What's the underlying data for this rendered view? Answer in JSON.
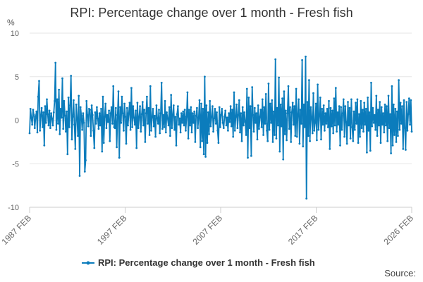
{
  "chart_data": {
    "type": "line",
    "title": "RPI: Percentage change over 1 month - Fresh fish",
    "ylabel": "%",
    "xlabel": "",
    "ylim": [
      -10,
      10
    ],
    "yticks": [
      10,
      5,
      0,
      -5,
      -10
    ],
    "xticks": [
      "1987 FEB",
      "1997 FEB",
      "2007 FEB",
      "2017 FEB",
      "2026 FEB"
    ],
    "x_start": "1987 FEB",
    "x_end": "2026 FEB",
    "grid": "horizontal",
    "legend_position": "bottom",
    "series": [
      {
        "name": "RPI: Percentage change over 1 month - Fresh fish",
        "color": "#0b7cbc",
        "values": [
          -1.5,
          1.3,
          0.3,
          -0.5,
          1.2,
          0.6,
          -0.9,
          0.4,
          1.0,
          -1.4,
          2.7,
          4.5,
          -1.2,
          0.5,
          1.4,
          -0.8,
          0.9,
          -2.9,
          1.6,
          -0.3,
          2.4,
          0.7,
          -0.6,
          1.1,
          -0.9,
          0.8,
          0.2,
          -0.6,
          0.9,
          2.2,
          6.6,
          -1.1,
          2.4,
          -0.4,
          3.5,
          -1.6,
          1.3,
          0.3,
          4.8,
          -1.0,
          2.2,
          0.5,
          -1.3,
          1.0,
          -3.9,
          2.6,
          -0.8,
          1.7,
          5.1,
          -2.2,
          0.4,
          2.3,
          -0.5,
          -3.3,
          1.8,
          0.2,
          -1.8,
          2.8,
          -6.4,
          1.5,
          0.5,
          -1.1,
          0.8,
          -0.3,
          -5.9,
          -4.6,
          2.2,
          0.6,
          -0.7,
          1.3,
          1.2,
          -1.8,
          1.7,
          0.6,
          -1.2,
          -3.2,
          0.9,
          -0.4,
          1.5,
          0.2,
          -1.0,
          0.8,
          -0.6,
          1.3,
          -3.6,
          2.7,
          -2.6,
          0.4,
          1.9,
          -0.9,
          0.6,
          -0.2,
          1.1,
          -2.4,
          0.8,
          1.5,
          -0.4,
          3.9,
          -0.8,
          -0.9,
          1.4,
          -3.1,
          0.6,
          3.3,
          -4.3,
          1.5,
          -0.3,
          2.7,
          0.8,
          -1.2,
          1.9,
          0.4,
          -2.7,
          1.4,
          -0.6,
          0.8,
          2.0,
          -1.1,
          3.7,
          -0.8,
          1.6,
          0.3,
          -0.5,
          1.1,
          -3.2,
          2.0,
          -0.9,
          0.4,
          1.6,
          -1.3,
          0.7,
          2.1,
          -0.6,
          1.2,
          -2.5,
          0.8,
          2.7,
          -0.4,
          1.4,
          -1.7,
          3.9,
          -1.2,
          0.3,
          1.3,
          -0.7,
          0.5,
          -1.9,
          1.7,
          0.2,
          -0.4,
          1.2,
          -1.5,
          0.8,
          4.3,
          -1.0,
          0.6,
          -0.8,
          2.2,
          -1.4,
          0.9,
          0.2,
          -0.6,
          1.5,
          -1.8,
          2.9,
          -0.9,
          0.6,
          1.7,
          -1.1,
          0.4,
          -2.9,
          0.7,
          1.6,
          -0.5,
          0.2,
          -1.4,
          0.8,
          -0.3,
          1.0,
          -0.6,
          1.2,
          -1.2,
          0.4,
          3.2,
          -2.1,
          1.2,
          -0.6,
          1.5,
          -1.4,
          0.8,
          -0.3,
          1.0,
          -2.5,
          0.5,
          1.4,
          -0.9,
          0.3,
          2.3,
          -3.1,
          1.9,
          -2.4,
          1.3,
          -3.9,
          5.0,
          -4.2,
          1.7,
          -2.6,
          0.9,
          -1.6,
          2.2,
          -0.7,
          0.4,
          1.6,
          -1.3,
          0.2,
          1.3,
          -0.4,
          0.9,
          -1.2,
          -2.6,
          1.5,
          -0.8,
          0.6,
          1.3,
          -0.3,
          -0.9,
          0.4,
          1.1,
          -0.6,
          0.3,
          -1.2,
          0.8,
          -0.2,
          1.6,
          -0.7,
          1.2,
          -1.9,
          3.2,
          -1.2,
          0.4,
          1.8,
          -0.9,
          0.6,
          2.3,
          -1.4,
          0.8,
          -2.4,
          1.5,
          -0.6,
          0.9,
          -0.2,
          -1.7,
          3.6,
          -4.3,
          2.6,
          -0.9,
          1.6,
          -4.1,
          3.8,
          0.6,
          -1.3,
          1.4,
          -0.3,
          0.8,
          -2.2,
          1.7,
          -1.0,
          0.4,
          1.2,
          -0.8,
          2.4,
          -1.7,
          1.5,
          -0.4,
          3.0,
          -1.2,
          -2.4,
          4.2,
          -1.1,
          1.9,
          -0.3,
          2.3,
          -2.5,
          1.0,
          -1.7,
          7.0,
          -2.1,
          1.4,
          -0.6,
          4.9,
          -3.6,
          1.8,
          -0.7,
          2.5,
          -4.5,
          3.3,
          -1.6,
          1.1,
          -2.3,
          0.8,
          3.9,
          -1.0,
          1.5,
          -2.5,
          0.9,
          2.0,
          -0.5,
          1.6,
          -1.8,
          3.6,
          -1.9,
          0.7,
          2.4,
          -2.7,
          1.2,
          -0.4,
          6.9,
          -3.0,
          1.8,
          -0.8,
          7.3,
          -9.0,
          2.1,
          -1.8,
          4.6,
          -2.4,
          1.5,
          0.3,
          -1.5,
          3.1,
          -1.2,
          -0.3,
          1.9,
          -2.3,
          4.1,
          -1.1,
          0.5,
          2.6,
          -2.2,
          1.3,
          -0.5,
          1.7,
          -1.2,
          0.8,
          -0.4,
          1.3,
          -0.8,
          2.2,
          -3.3,
          1.4,
          -0.7,
          1.1,
          -1.5,
          2.5,
          -0.6,
          3.7,
          -1.3,
          0.9,
          -0.5,
          1.6,
          -2.9,
          1.5,
          -1.1,
          0.8,
          2.4,
          -1.9,
          1.6,
          -0.2,
          -2.7,
          2.1,
          -0.6,
          1.4,
          -2.1,
          2.4,
          -0.8,
          -2.4,
          1.0,
          -1.1,
          2.0,
          -0.4,
          2.4,
          -2.6,
          0.7,
          -1.9,
          2.2,
          -0.9,
          1.2,
          -1.3,
          2.0,
          -0.5,
          1.3,
          -3.7,
          2.6,
          -1.2,
          0.9,
          -3.5,
          4.3,
          -0.7,
          1.4,
          -0.3,
          0.6,
          -1.1,
          2.8,
          -1.8,
          1.2,
          -0.6,
          2.1,
          -2.6,
          1.5,
          -0.5,
          0.8,
          -1.4,
          1.8,
          -0.6,
          1.6,
          -2.4,
          2.8,
          -0.9,
          0.7,
          -3.8,
          3.9,
          -2.9,
          1.8,
          -1.7,
          1.3,
          -2.5,
          1.0,
          -1.8,
          4.6,
          -1.1,
          2.0,
          -0.4,
          1.6,
          -3.3,
          2.3,
          -0.9,
          -3.4,
          2.1,
          -1.2,
          0.7,
          2.5,
          -0.5,
          2.3,
          -1.3
        ]
      }
    ]
  },
  "source_label": "Source:"
}
